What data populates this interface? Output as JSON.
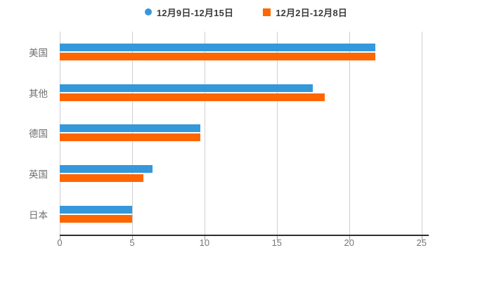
{
  "legend": {
    "items": [
      {
        "label": "12月9日-12月15日",
        "marker": "circle",
        "color": "#3498db"
      },
      {
        "label": "12月2日-12月8日",
        "marker": "square",
        "color": "#ff6600"
      }
    ]
  },
  "chart_data": {
    "type": "bar",
    "orientation": "horizontal",
    "title": "",
    "xlabel": "",
    "ylabel": "",
    "categories": [
      "美国",
      "其他",
      "德国",
      "英国",
      "日本"
    ],
    "series": [
      {
        "name": "12月9日-12月15日",
        "color": "#3498db",
        "values": [
          21.8,
          17.5,
          9.7,
          6.4,
          5.0
        ]
      },
      {
        "name": "12月2日-12月8日",
        "color": "#ff6600",
        "values": [
          21.8,
          18.3,
          9.7,
          5.8,
          5.0
        ]
      }
    ],
    "x_ticks": [
      0,
      5,
      10,
      15,
      20,
      25
    ],
    "xlim": [
      0,
      25.5
    ],
    "grid": "vertical",
    "grid_color": "#cfcfcf",
    "axis_line_color": "#2e2e2e",
    "tick_label_color": "#767676",
    "category_label_color": "#6f6f6f",
    "legend_position": "top"
  }
}
